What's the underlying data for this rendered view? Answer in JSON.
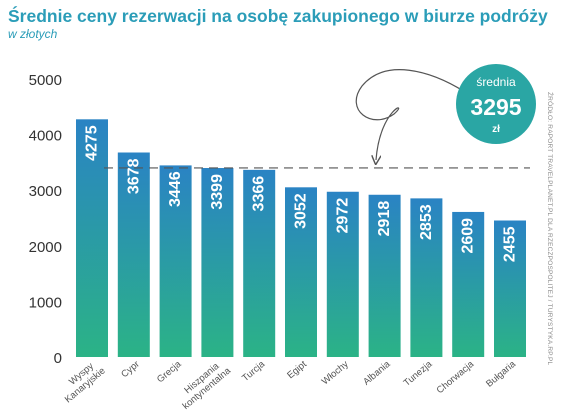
{
  "header": {
    "title": "Średnie ceny rezerwacji na osobę zakupionego w biurze podróży",
    "subtitle": "w złotych"
  },
  "source_note": "ŹRÓDŁO: RAPORT TRAVELPLANET.PL DLA RZECZPOSPOLITEJ / TURYSTYKA.RP.PL",
  "average_badge": {
    "label": "średnia",
    "value": "3295",
    "unit": "zł"
  },
  "colors": {
    "title": "#2b9db8",
    "bar_top": "#2a83c4",
    "bar_bottom": "#2bb386",
    "badge": "#2aa6a4",
    "axis_text": "#333333",
    "label_text": "#555555",
    "dashed_line": "#555555"
  },
  "chart_data": {
    "type": "bar",
    "categories": [
      "Wyspy Kanaryjskie",
      "Cypr",
      "Grecja",
      "Hiszpania kontynentalna",
      "Turcja",
      "Egipt",
      "Włochy",
      "Albania",
      "Tunezja",
      "Chorwacja",
      "Bułgaria"
    ],
    "values": [
      4275,
      3678,
      3446,
      3399,
      3366,
      3052,
      2972,
      2918,
      2853,
      2609,
      2455
    ],
    "value_labels": [
      "4275",
      "3678",
      "3446",
      "3399",
      "3366",
      "3052",
      "2972",
      "2918",
      "2853",
      "2609",
      "2455"
    ],
    "category_labels": [
      [
        "Wyspy",
        "Kanaryjskie"
      ],
      [
        "Cypr"
      ],
      [
        "Grecja"
      ],
      [
        "Hiszpania",
        "kontynentalna"
      ],
      [
        "Turcja"
      ],
      [
        "Egipt"
      ],
      [
        "Włochy"
      ],
      [
        "Albania"
      ],
      [
        "Tunezja"
      ],
      [
        "Chorwacja"
      ],
      [
        "Bułgaria"
      ]
    ],
    "yticks": [
      0,
      1000,
      2000,
      3000,
      4000,
      5000
    ],
    "ylim": [
      0,
      5000
    ],
    "reference_line": 3400,
    "grid": false,
    "legend": "none"
  }
}
